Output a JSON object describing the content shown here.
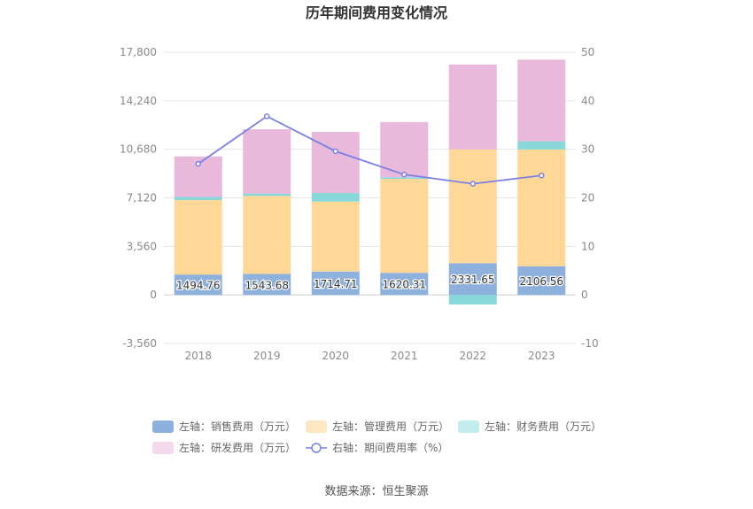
{
  "title": "历年期间费用变化情况",
  "source": "数据来源：恒生聚源",
  "chart_data": {
    "type": "bar",
    "stacked": true,
    "categories": [
      "2018",
      "2019",
      "2020",
      "2021",
      "2022",
      "2023"
    ],
    "left_axis": {
      "ylim": [
        -3560,
        17800
      ],
      "ticks": [
        -3560,
        0,
        3560,
        7120,
        10680,
        14240,
        17800
      ],
      "tick_labels": [
        "-3,560",
        "0",
        "3,560",
        "7,120",
        "10,680",
        "14,240",
        "17,800"
      ]
    },
    "right_axis": {
      "ylim": [
        -10,
        50
      ],
      "ticks": [
        -10,
        0,
        10,
        20,
        30,
        40,
        50
      ],
      "tick_labels": [
        "-10",
        "0",
        "10",
        "20",
        "30",
        "40",
        "50"
      ]
    },
    "series": [
      {
        "name": "左轴：销售费用（万元）",
        "type": "bar",
        "axis": "left",
        "color": "#8eb0dd",
        "values": [
          1494.76,
          1543.68,
          1714.71,
          1620.31,
          2331.65,
          2106.56
        ],
        "labels": [
          "1494.76",
          "1543.68",
          "1714.71",
          "1620.31",
          "2331.65",
          "2106.56"
        ]
      },
      {
        "name": "左轴：管理费用（万元）",
        "type": "bar",
        "axis": "left",
        "color": "#ffd898",
        "values": [
          5460,
          5720,
          5130,
          6890,
          8340,
          8560
        ]
      },
      {
        "name": "左轴：财务费用（万元）",
        "type": "bar",
        "axis": "left",
        "color": "#88d8da",
        "values": [
          230,
          170,
          630,
          120,
          -700,
          600
        ]
      },
      {
        "name": "左轴：研发费用（万元）",
        "type": "bar",
        "axis": "left",
        "color": "#e8b9db",
        "values": [
          2970,
          4720,
          4480,
          4050,
          6230,
          5990
        ]
      },
      {
        "name": "右轴：期间费用率（%）",
        "type": "line",
        "axis": "right",
        "color": "#7b7fe6",
        "values": [
          27.0,
          36.8,
          29.6,
          24.8,
          22.9,
          24.6
        ]
      }
    ],
    "legend": {
      "position": "bottom",
      "swatch_colors": [
        "#8eb0dd",
        "#fde7c3",
        "#c3ecec",
        "#f3d8ee"
      ]
    },
    "grid": true
  }
}
